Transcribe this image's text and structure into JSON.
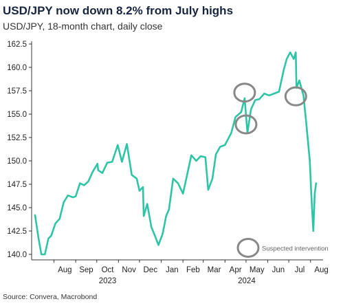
{
  "title": "USD/JPY now down 8.2% from July highs",
  "subtitle": "USD/JPY, 18-month chart, daily close",
  "source": "Source: Convera, Macrobond",
  "chart_data": {
    "type": "line",
    "series_color": "#2ec4a6",
    "marker_color": "#888888",
    "ylim": [
      140.0,
      162.5
    ],
    "yticks": [
      "140.0",
      "142.5",
      "145.0",
      "147.5",
      "150.0",
      "152.5",
      "155.0",
      "157.5",
      "160.0",
      "162.5"
    ],
    "xtick_labels": [
      "Aug",
      "Sep",
      "Oct",
      "Nov",
      "Dec",
      "Jan",
      "Feb",
      "Mar",
      "Apr",
      "May",
      "Jun",
      "Jul",
      "Aug"
    ],
    "year_labels": [
      "2023",
      "2024"
    ],
    "x": [
      "2023-07-05",
      "2023-07-10",
      "2023-07-14",
      "2023-07-19",
      "2023-07-24",
      "2023-07-28",
      "2023-08-03",
      "2023-08-09",
      "2023-08-15",
      "2023-08-21",
      "2023-08-28",
      "2023-09-01",
      "2023-09-07",
      "2023-09-13",
      "2023-09-19",
      "2023-09-25",
      "2023-10-02",
      "2023-10-03",
      "2023-10-09",
      "2023-10-16",
      "2023-10-23",
      "2023-10-31",
      "2023-11-06",
      "2023-11-13",
      "2023-11-20",
      "2023-11-27",
      "2023-12-01",
      "2023-12-06",
      "2023-12-07",
      "2023-12-12",
      "2023-12-18",
      "2023-12-22",
      "2023-12-28",
      "2024-01-03",
      "2024-01-08",
      "2024-01-12",
      "2024-01-18",
      "2024-01-25",
      "2024-02-01",
      "2024-02-06",
      "2024-02-13",
      "2024-02-20",
      "2024-02-26",
      "2024-03-04",
      "2024-03-08",
      "2024-03-14",
      "2024-03-19",
      "2024-03-25",
      "2024-04-01",
      "2024-04-10",
      "2024-04-16",
      "2024-04-24",
      "2024-04-29",
      "2024-05-03",
      "2024-05-08",
      "2024-05-14",
      "2024-05-20",
      "2024-05-27",
      "2024-06-03",
      "2024-06-10",
      "2024-06-17",
      "2024-06-24",
      "2024-06-28",
      "2024-07-03",
      "2024-07-08",
      "2024-07-11",
      "2024-07-12",
      "2024-07-16",
      "2024-07-22",
      "2024-07-26",
      "2024-07-31",
      "2024-08-02",
      "2024-08-05",
      "2024-08-07",
      "2024-08-09"
    ],
    "y": [
      144.2,
      141.7,
      138.8,
      139.9,
      141.7,
      142.0,
      143.3,
      143.8,
      145.6,
      146.3,
      146.1,
      146.2,
      147.6,
      147.4,
      147.8,
      148.8,
      149.7,
      149.0,
      148.7,
      149.8,
      149.9,
      151.7,
      149.9,
      151.8,
      148.5,
      148.1,
      146.8,
      147.2,
      144.1,
      145.4,
      142.9,
      142.2,
      141.0,
      142.2,
      144.1,
      144.8,
      148.1,
      147.6,
      146.5,
      148.2,
      150.6,
      150.0,
      150.5,
      150.4,
      146.9,
      148.1,
      150.7,
      151.5,
      151.7,
      153.0,
      154.7,
      155.2,
      156.7,
      153.0,
      155.5,
      156.5,
      156.6,
      157.2,
      157.0,
      157.2,
      157.4,
      159.8,
      160.9,
      161.6,
      160.9,
      161.6,
      157.8,
      158.6,
      157.0,
      154.0,
      150.0,
      146.5,
      142.5,
      146.5,
      147.6
    ],
    "annotations": [
      {
        "x": "2024-04-29",
        "y": 157.3
      },
      {
        "x": "2024-05-01",
        "y": 153.9
      },
      {
        "x": "2024-07-11",
        "y": 156.9
      },
      {
        "x": "2024-05-04",
        "y": 140.7,
        "label": "Suspected intervention"
      }
    ]
  }
}
